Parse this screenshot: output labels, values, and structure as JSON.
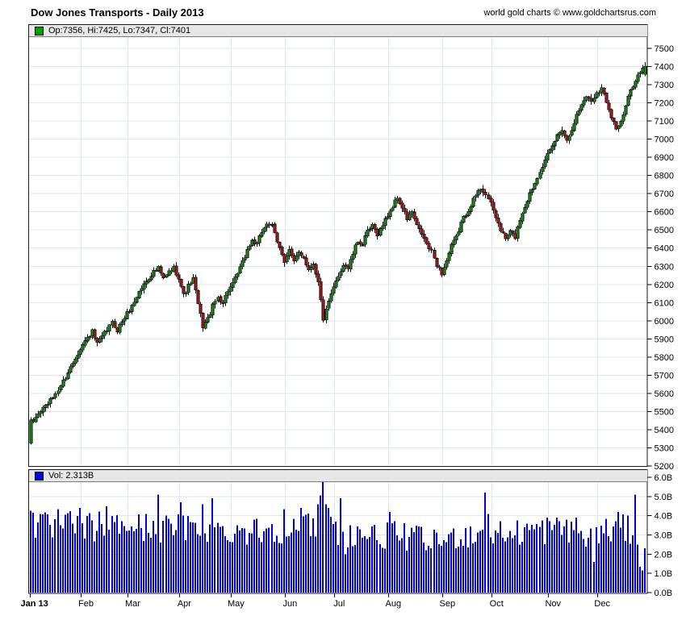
{
  "header": {
    "title": "Dow Jones Transports - Daily 2013",
    "credit": "world gold charts © www.goldchartsrus.com"
  },
  "price_panel": {
    "legend": "Op:7356, Hi:7425, Lo:7347, Cl:7401",
    "swatch_color": "#00a000"
  },
  "volume_panel": {
    "legend": "Vol: 2.313B",
    "swatch_color": "#0000e0"
  },
  "chart_data": {
    "type": "candlestick",
    "title": "Dow Jones Transports - Daily 2013",
    "subtitle": "world gold charts © www.goldchartsrus.com",
    "legend_price": "Op:7356, Hi:7425, Lo:7347, Cl:7401",
    "legend_volume": "Vol: 2.313B",
    "grid": true,
    "x_axis": {
      "months": [
        "Jan 13",
        "Feb",
        "Mar",
        "Apr",
        "May",
        "Jun",
        "Jul",
        "Aug",
        "Sep",
        "Oct",
        "Nov",
        "Dec"
      ],
      "month_start_days": [
        0,
        21,
        40,
        61,
        82,
        104,
        124,
        146,
        168,
        188,
        211,
        231
      ],
      "total_days": 251
    },
    "y_axis_price": {
      "min": 5200,
      "max": 7500,
      "step": 100,
      "labels": [
        "7500",
        "7400",
        "7300",
        "7200",
        "7100",
        "7000",
        "6900",
        "6800",
        "6700",
        "6600",
        "6500",
        "6400",
        "6300",
        "6200",
        "6100",
        "6000",
        "5900",
        "5800",
        "5700",
        "5600",
        "5500",
        "5400",
        "5300",
        "5200"
      ]
    },
    "y_axis_volume": {
      "min": 0,
      "max": 6,
      "step": 1,
      "labels": [
        "6.0B",
        "5.0B",
        "4.0B",
        "3.0B",
        "2.0B",
        "1.0B",
        "0.0B"
      ],
      "values": [
        6,
        5,
        4,
        3,
        2,
        1,
        0
      ]
    },
    "first_candle": {
      "open": 5325,
      "high": 5468,
      "low": 5318,
      "close": 5455
    },
    "last_candle": {
      "open": 7356,
      "high": 7425,
      "low": 7347,
      "close": 7401
    },
    "last_volume": 2.313,
    "price_anchors": [
      [
        0,
        5395
      ],
      [
        2,
        5470
      ],
      [
        5,
        5520
      ],
      [
        8,
        5560
      ],
      [
        11,
        5620
      ],
      [
        14,
        5690
      ],
      [
        17,
        5770
      ],
      [
        20,
        5850
      ],
      [
        23,
        5905
      ],
      [
        25,
        5940
      ],
      [
        27,
        5870
      ],
      [
        30,
        5930
      ],
      [
        33,
        5990
      ],
      [
        35,
        5950
      ],
      [
        38,
        6020
      ],
      [
        41,
        6080
      ],
      [
        44,
        6160
      ],
      [
        47,
        6220
      ],
      [
        50,
        6270
      ],
      [
        52,
        6290
      ],
      [
        54,
        6230
      ],
      [
        56,
        6270
      ],
      [
        58,
        6290
      ],
      [
        60,
        6240
      ],
      [
        62,
        6140
      ],
      [
        64,
        6190
      ],
      [
        66,
        6230
      ],
      [
        68,
        6090
      ],
      [
        70,
        5970
      ],
      [
        72,
        6010
      ],
      [
        74,
        6080
      ],
      [
        76,
        6130
      ],
      [
        78,
        6100
      ],
      [
        80,
        6170
      ],
      [
        82,
        6200
      ],
      [
        84,
        6260
      ],
      [
        86,
        6320
      ],
      [
        88,
        6390
      ],
      [
        90,
        6440
      ],
      [
        92,
        6420
      ],
      [
        94,
        6490
      ],
      [
        96,
        6540
      ],
      [
        98,
        6520
      ],
      [
        100,
        6430
      ],
      [
        102,
        6370
      ],
      [
        103,
        6330
      ],
      [
        105,
        6390
      ],
      [
        107,
        6320
      ],
      [
        109,
        6380
      ],
      [
        111,
        6350
      ],
      [
        113,
        6280
      ],
      [
        115,
        6320
      ],
      [
        117,
        6210
      ],
      [
        119,
        6010
      ],
      [
        121,
        6100
      ],
      [
        123,
        6180
      ],
      [
        125,
        6250
      ],
      [
        127,
        6310
      ],
      [
        129,
        6290
      ],
      [
        131,
        6370
      ],
      [
        133,
        6440
      ],
      [
        135,
        6420
      ],
      [
        137,
        6490
      ],
      [
        139,
        6520
      ],
      [
        141,
        6480
      ],
      [
        143,
        6530
      ],
      [
        145,
        6580
      ],
      [
        147,
        6630
      ],
      [
        149,
        6680
      ],
      [
        151,
        6620
      ],
      [
        153,
        6560
      ],
      [
        155,
        6600
      ],
      [
        157,
        6520
      ],
      [
        159,
        6480
      ],
      [
        161,
        6420
      ],
      [
        163,
        6380
      ],
      [
        165,
        6310
      ],
      [
        167,
        6260
      ],
      [
        169,
        6330
      ],
      [
        171,
        6410
      ],
      [
        173,
        6460
      ],
      [
        175,
        6540
      ],
      [
        177,
        6590
      ],
      [
        179,
        6640
      ],
      [
        181,
        6690
      ],
      [
        183,
        6730
      ],
      [
        185,
        6700
      ],
      [
        187,
        6640
      ],
      [
        189,
        6570
      ],
      [
        191,
        6500
      ],
      [
        193,
        6450
      ],
      [
        195,
        6490
      ],
      [
        197,
        6460
      ],
      [
        199,
        6560
      ],
      [
        201,
        6630
      ],
      [
        203,
        6700
      ],
      [
        205,
        6760
      ],
      [
        207,
        6830
      ],
      [
        209,
        6880
      ],
      [
        210,
        6910
      ],
      [
        212,
        6960
      ],
      [
        214,
        7020
      ],
      [
        216,
        7060
      ],
      [
        218,
        6990
      ],
      [
        220,
        7060
      ],
      [
        222,
        7130
      ],
      [
        224,
        7190
      ],
      [
        226,
        7240
      ],
      [
        228,
        7210
      ],
      [
        230,
        7260
      ],
      [
        232,
        7280
      ],
      [
        234,
        7210
      ],
      [
        236,
        7130
      ],
      [
        238,
        7060
      ],
      [
        240,
        7090
      ],
      [
        242,
        7180
      ],
      [
        244,
        7270
      ],
      [
        246,
        7330
      ],
      [
        248,
        7370
      ],
      [
        250,
        7401
      ]
    ],
    "volume_anchors": [
      [
        0,
        3.8
      ],
      [
        5,
        3.4
      ],
      [
        10,
        3.3
      ],
      [
        15,
        3.5
      ],
      [
        20,
        3.3
      ],
      [
        25,
        3.4
      ],
      [
        30,
        3.5
      ],
      [
        35,
        3.4
      ],
      [
        40,
        3.6
      ],
      [
        45,
        3.3
      ],
      [
        50,
        3.5
      ],
      [
        55,
        3.3
      ],
      [
        60,
        3.4
      ],
      [
        65,
        3.3
      ],
      [
        70,
        3.5
      ],
      [
        75,
        3.2
      ],
      [
        80,
        3.2
      ],
      [
        85,
        3.3
      ],
      [
        90,
        3.2
      ],
      [
        95,
        3.3
      ],
      [
        100,
        3.4
      ],
      [
        105,
        3.2
      ],
      [
        110,
        3.3
      ],
      [
        115,
        3.5
      ],
      [
        120,
        3.6
      ],
      [
        125,
        3.2
      ],
      [
        130,
        3.0
      ],
      [
        135,
        3.1
      ],
      [
        140,
        2.9
      ],
      [
        145,
        3.0
      ],
      [
        150,
        3.0
      ],
      [
        155,
        2.8
      ],
      [
        160,
        2.9
      ],
      [
        165,
        2.6
      ],
      [
        170,
        2.8
      ],
      [
        175,
        3.0
      ],
      [
        180,
        3.0
      ],
      [
        185,
        3.2
      ],
      [
        190,
        3.1
      ],
      [
        195,
        3.0
      ],
      [
        200,
        3.2
      ],
      [
        205,
        3.3
      ],
      [
        210,
        3.2
      ],
      [
        215,
        3.3
      ],
      [
        220,
        3.4
      ],
      [
        225,
        3.0
      ],
      [
        230,
        3.1
      ],
      [
        235,
        3.2
      ],
      [
        240,
        3.3
      ],
      [
        245,
        3.2
      ],
      [
        250,
        2.3
      ]
    ],
    "volume_overrides": {
      "0": 4.25,
      "11": 4.35,
      "20": 4.4,
      "31": 4.5,
      "52": 5.1,
      "61": 4.7,
      "70": 4.6,
      "74": 4.9,
      "103": 4.35,
      "110": 4.4,
      "117": 4.6,
      "118": 5.05,
      "119": 5.9,
      "120": 4.6,
      "121": 4.4,
      "126": 4.9,
      "128": 2.0,
      "146": 4.2,
      "161": 2.2,
      "185": 5.2,
      "186": 4.1,
      "210": 3.9,
      "220": 3.7,
      "226": 2.4,
      "229": 1.6,
      "239": 4.2,
      "246": 5.1,
      "247": 2.5,
      "248": 1.35,
      "249": 1.15,
      "250": 2.313
    },
    "colors": {
      "up": "#1d9e1d",
      "down": "#c41c1c",
      "wick": "#000000",
      "volume": "#0000dd",
      "grid": "#dce9f5",
      "border": "#1a1a1a",
      "text": "#000000"
    }
  }
}
